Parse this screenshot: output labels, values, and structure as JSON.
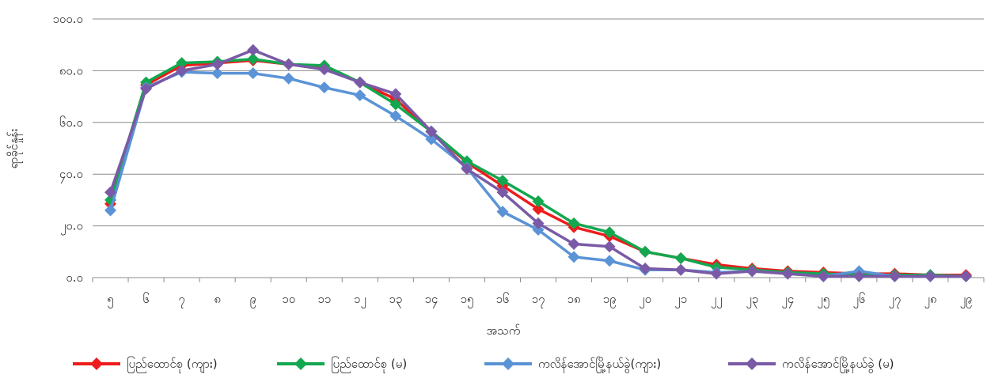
{
  "chart_data": {
    "type": "line",
    "xlabel": "အသက်",
    "ylabel": "ရာခိုင်နှုန်း",
    "ylim": [
      0,
      100
    ],
    "yticks": [
      "၀.၀",
      "၂၀.၀",
      "၄၀.၀",
      "၆၀.၀",
      "၈၀.၀",
      "၁၀၀.၀"
    ],
    "categories": [
      "၅",
      "၆",
      "၇",
      "၈",
      "၉",
      "၁၀",
      "၁၁",
      "၁၂",
      "၁၃",
      "၁၄",
      "၁၅",
      "၁၆",
      "၁၇",
      "၁၈",
      "၁၉",
      "၂၀",
      "၂၁",
      "၂၂",
      "၂၃",
      "၂၄",
      "၂၅",
      "၂၆",
      "၂၇",
      "၂၈",
      "၂၉"
    ],
    "grid": true,
    "legend_position": "bottom",
    "series": [
      {
        "name": "ပြည်ထောင်စု (ကျား)",
        "color": "#ee1c1c",
        "values": [
          28.5,
          74.5,
          82.0,
          83.0,
          84.0,
          82.5,
          81.5,
          75.5,
          69.0,
          56.5,
          44.5,
          35.5,
          26.5,
          19.5,
          16.0,
          10.0,
          7.5,
          5.0,
          3.5,
          2.5,
          2.0,
          1.5,
          1.5,
          1.0,
          1.0
        ]
      },
      {
        "name": "ပြည်ထောင်စု (မ)",
        "color": "#13a74f",
        "values": [
          30.0,
          75.5,
          83.0,
          83.5,
          84.5,
          82.5,
          82.0,
          75.5,
          67.0,
          56.5,
          45.0,
          37.5,
          29.5,
          21.0,
          17.5,
          10.0,
          7.5,
          4.0,
          3.0,
          2.0,
          1.5,
          1.0,
          1.0,
          1.0,
          0.5
        ]
      },
      {
        "name": "ကလိန်အောင်မြို့နယ်ခွဲ(ကျား)",
        "color": "#5b93d7",
        "values": [
          26.0,
          73.5,
          79.5,
          79.0,
          79.0,
          77.0,
          73.5,
          70.5,
          62.5,
          53.5,
          42.5,
          25.5,
          18.5,
          8.0,
          6.5,
          3.0,
          3.0,
          2.0,
          2.5,
          1.5,
          0.5,
          2.5,
          0.5,
          0.5,
          0.5
        ]
      },
      {
        "name": "ကလိန်အောင်မြို့နယ်ခွဲ (မ)",
        "color": "#7a5aa6",
        "values": [
          33.0,
          73.0,
          80.0,
          82.5,
          88.0,
          82.5,
          80.5,
          75.5,
          71.0,
          56.5,
          42.0,
          33.0,
          21.0,
          13.0,
          12.0,
          3.5,
          3.0,
          1.5,
          2.5,
          1.5,
          0.5,
          0.5,
          0.5,
          0.5,
          0.5
        ]
      }
    ]
  }
}
